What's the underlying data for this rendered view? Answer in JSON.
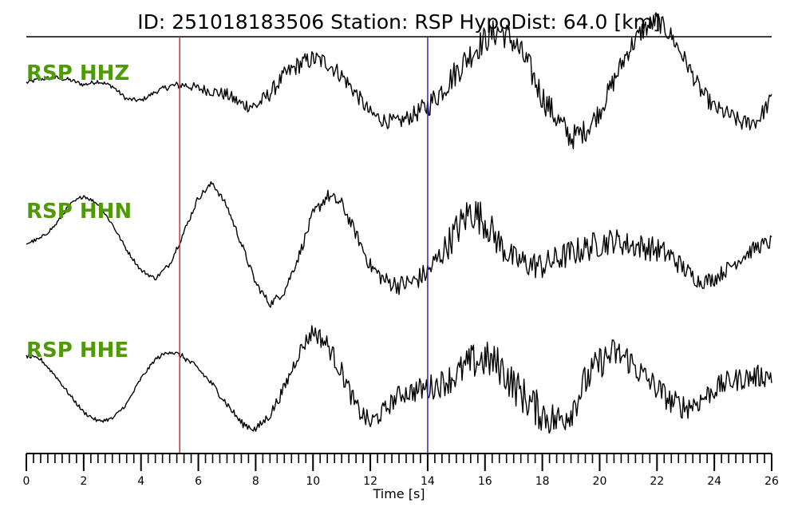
{
  "title": "ID: 251018183506   Station: RSP   HypoDist:    64.0 [km]",
  "colors": {
    "trace": "#000000",
    "label": "#4f9a06",
    "p_pick": "#e8262a",
    "s_pick": "#1f2ec8"
  },
  "chart_data": {
    "type": "line",
    "title": "ID: 251018183506   Station: RSP   HypoDist:    64.0 [km]",
    "xlabel": "Time [s]",
    "ylabel": "",
    "xlim": [
      0,
      26
    ],
    "x_major_ticks": [
      0,
      2,
      4,
      6,
      8,
      10,
      12,
      14,
      16,
      18,
      20,
      22,
      24,
      26
    ],
    "x_minor_step": 0.25,
    "grid": false,
    "picks": [
      {
        "phase": "P",
        "time": 5.35,
        "color": "#e8262a"
      },
      {
        "phase": "S",
        "time": 14.0,
        "color": "#1f2ec8"
      }
    ],
    "series": [
      {
        "name": "RSP HHZ",
        "normalized": true,
        "x": [
          0,
          0.5,
          1,
          1.5,
          2,
          2.5,
          3,
          3.5,
          4,
          4.5,
          5,
          5.5,
          6,
          6.5,
          7,
          7.5,
          8,
          8.5,
          9,
          9.5,
          10,
          10.5,
          11,
          11.5,
          12,
          12.5,
          13,
          13.5,
          14,
          14.5,
          15,
          15.5,
          16,
          16.5,
          17,
          17.5,
          18,
          18.5,
          19,
          19.5,
          20,
          20.5,
          21,
          21.5,
          22,
          22.5,
          23,
          23.5,
          24,
          24.5,
          25,
          25.5,
          26
        ],
        "y": [
          0.05,
          0.1,
          0.12,
          0.09,
          0.02,
          0.07,
          0.0,
          -0.18,
          -0.2,
          -0.08,
          0.0,
          0.02,
          -0.03,
          -0.07,
          -0.12,
          -0.25,
          -0.28,
          -0.1,
          0.15,
          0.3,
          0.38,
          0.33,
          0.15,
          -0.1,
          -0.38,
          -0.48,
          -0.5,
          -0.4,
          -0.28,
          -0.05,
          0.2,
          0.45,
          0.65,
          0.78,
          0.62,
          0.3,
          -0.15,
          -0.45,
          -0.72,
          -0.62,
          -0.35,
          0.08,
          0.5,
          0.78,
          0.92,
          0.7,
          0.35,
          -0.05,
          -0.3,
          -0.4,
          -0.52,
          -0.48,
          -0.18
        ],
        "noise": [
          0.03,
          0.03,
          0.03,
          0.03,
          0.03,
          0.03,
          0.03,
          0.03,
          0.03,
          0.03,
          0.05,
          0.06,
          0.07,
          0.08,
          0.09,
          0.1,
          0.1,
          0.11,
          0.12,
          0.13,
          0.13,
          0.13,
          0.12,
          0.11,
          0.11,
          0.11,
          0.1,
          0.12,
          0.16,
          0.18,
          0.2,
          0.2,
          0.2,
          0.2,
          0.2,
          0.2,
          0.2,
          0.19,
          0.18,
          0.16,
          0.15,
          0.15,
          0.15,
          0.15,
          0.14,
          0.13,
          0.12,
          0.12,
          0.12,
          0.12,
          0.12,
          0.12,
          0.12
        ]
      },
      {
        "name": "RSP HHN",
        "normalized": true,
        "x": [
          0,
          0.5,
          1,
          1.5,
          2,
          2.5,
          3,
          3.5,
          4,
          4.5,
          5,
          5.5,
          6,
          6.5,
          7,
          7.5,
          8,
          8.5,
          9,
          9.5,
          10,
          10.5,
          11,
          11.5,
          12,
          12.5,
          13,
          13.5,
          14,
          14.5,
          15,
          15.5,
          16,
          16.5,
          17,
          17.5,
          18,
          18.5,
          19,
          19.5,
          20,
          20.5,
          21,
          21.5,
          22,
          22.5,
          23,
          23.5,
          24,
          24.5,
          25,
          25.5,
          26
        ],
        "y": [
          0.0,
          0.08,
          0.28,
          0.6,
          0.75,
          0.62,
          0.3,
          -0.1,
          -0.42,
          -0.55,
          -0.32,
          0.18,
          0.72,
          0.95,
          0.58,
          0.0,
          -0.62,
          -0.95,
          -0.75,
          -0.2,
          0.45,
          0.75,
          0.62,
          0.15,
          -0.35,
          -0.58,
          -0.65,
          -0.6,
          -0.45,
          -0.15,
          0.2,
          0.52,
          0.35,
          0.0,
          -0.25,
          -0.32,
          -0.35,
          -0.25,
          -0.15,
          -0.08,
          0.0,
          0.05,
          -0.02,
          -0.05,
          -0.1,
          -0.2,
          -0.42,
          -0.6,
          -0.55,
          -0.38,
          -0.2,
          -0.05,
          0.02
        ],
        "noise": [
          0.03,
          0.03,
          0.03,
          0.03,
          0.03,
          0.03,
          0.03,
          0.03,
          0.03,
          0.03,
          0.04,
          0.05,
          0.05,
          0.05,
          0.05,
          0.06,
          0.06,
          0.06,
          0.07,
          0.08,
          0.1,
          0.1,
          0.1,
          0.1,
          0.12,
          0.14,
          0.15,
          0.16,
          0.18,
          0.22,
          0.28,
          0.3,
          0.28,
          0.25,
          0.22,
          0.22,
          0.22,
          0.22,
          0.22,
          0.22,
          0.22,
          0.2,
          0.2,
          0.2,
          0.2,
          0.18,
          0.15,
          0.12,
          0.12,
          0.12,
          0.12,
          0.12,
          0.12
        ]
      },
      {
        "name": "RSP HHE",
        "normalized": true,
        "x": [
          0,
          0.5,
          1,
          1.5,
          2,
          2.5,
          3,
          3.5,
          4,
          4.5,
          5,
          5.5,
          6,
          6.5,
          7,
          7.5,
          8,
          8.5,
          9,
          9.5,
          10,
          10.5,
          11,
          11.5,
          12,
          12.5,
          13,
          13.5,
          14,
          14.5,
          15,
          15.5,
          16,
          16.5,
          17,
          17.5,
          18,
          18.5,
          19,
          19.5,
          20,
          20.5,
          21,
          21.5,
          22,
          22.5,
          23,
          23.5,
          24,
          24.5,
          25,
          25.5,
          26
        ],
        "y": [
          0.3,
          0.25,
          0.0,
          -0.3,
          -0.58,
          -0.72,
          -0.68,
          -0.45,
          -0.05,
          0.25,
          0.38,
          0.28,
          0.1,
          -0.15,
          -0.45,
          -0.75,
          -0.85,
          -0.62,
          -0.2,
          0.35,
          0.7,
          0.48,
          0.05,
          -0.5,
          -0.75,
          -0.55,
          -0.3,
          -0.25,
          -0.2,
          -0.12,
          0.0,
          0.2,
          0.25,
          0.15,
          -0.15,
          -0.4,
          -0.6,
          -0.72,
          -0.55,
          -0.1,
          0.2,
          0.35,
          0.25,
          0.0,
          -0.2,
          -0.42,
          -0.5,
          -0.4,
          -0.22,
          -0.1,
          -0.05,
          -0.02,
          0.0
        ],
        "noise": [
          0.03,
          0.03,
          0.03,
          0.03,
          0.03,
          0.03,
          0.03,
          0.03,
          0.03,
          0.03,
          0.04,
          0.05,
          0.05,
          0.05,
          0.06,
          0.06,
          0.06,
          0.08,
          0.1,
          0.12,
          0.14,
          0.16,
          0.16,
          0.16,
          0.15,
          0.15,
          0.15,
          0.18,
          0.2,
          0.22,
          0.25,
          0.28,
          0.3,
          0.3,
          0.3,
          0.3,
          0.3,
          0.28,
          0.28,
          0.27,
          0.26,
          0.25,
          0.24,
          0.22,
          0.2,
          0.2,
          0.2,
          0.18,
          0.18,
          0.18,
          0.18,
          0.18,
          0.18
        ]
      }
    ]
  }
}
